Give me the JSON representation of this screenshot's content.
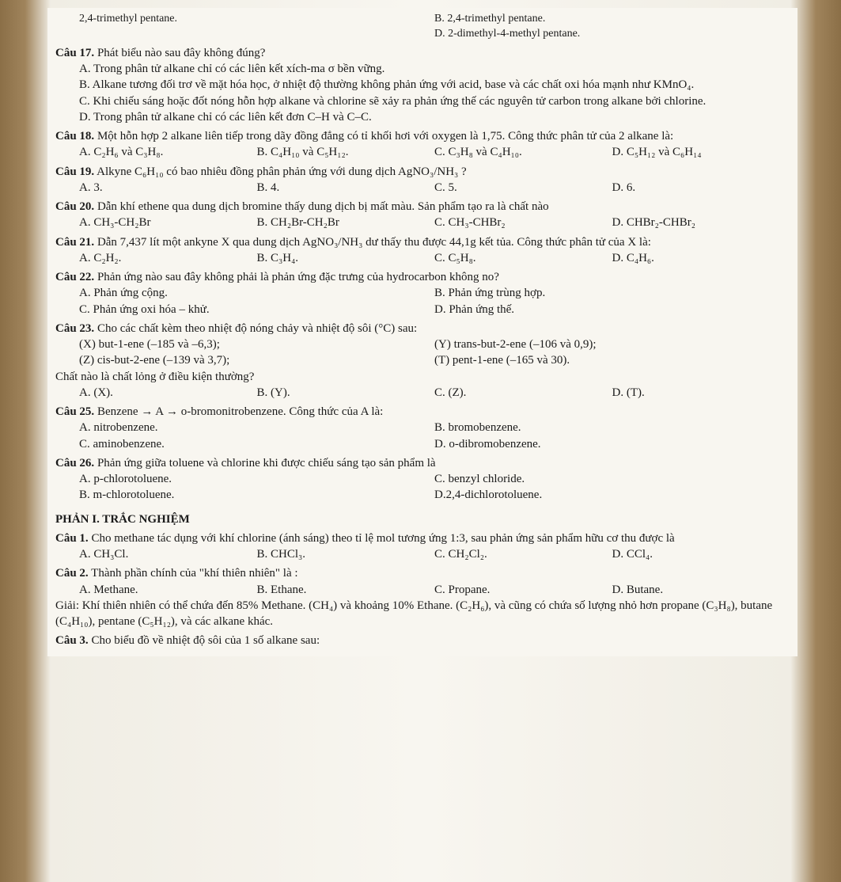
{
  "topFragment": {
    "left": "2,4-trimethyl pentane.",
    "optB": "B. 2,4-trimethyl pentane.",
    "optD": "D. 2-dimethyl-4-methyl pentane."
  },
  "q17": {
    "label": "Câu 17.",
    "text": "Phát biểu nào sau đây không đúng?",
    "optA": "A. Trong phân tử alkane chỉ có các liên kết xích-ma σ bền vững.",
    "optB": "B. Alkane tương đối trơ về mặt hóa học, ở nhiệt độ thường không phản ứng với acid, base và các chất oxi hóa mạnh như KMnO₄.",
    "optC": "C. Khi chiếu sáng hoặc đốt nóng hỗn hợp alkane và chlorine sẽ xảy ra phản ứng thế các nguyên tử carbon trong alkane bởi chlorine.",
    "optD": "D. Trong phân tử alkane chỉ có các liên kết đơn C–H và C–C."
  },
  "q18": {
    "label": "Câu 18.",
    "text": "Một hỗn hợp 2 alkane liên tiếp trong dãy đồng đẳng có tỉ khối hơi với oxygen là 1,75. Công thức phân tử của 2 alkane là:",
    "optA": "A. C₂H₆ và C₃H₈.",
    "optB": "B. C₄H₁₀ và C₅H₁₂.",
    "optC": "C. C₃H₈ và C₄H₁₀.",
    "optD": "D. C₅H₁₂ và C₆H₁₄"
  },
  "q19": {
    "label": "Câu 19.",
    "text": "Alkyne C₆H₁₀ có bao nhiêu đồng phân phản ứng với dung dịch AgNO₃/NH₃ ?",
    "optA": "A. 3.",
    "optB": "B. 4.",
    "optC": "C. 5.",
    "optD": "D. 6."
  },
  "q20": {
    "label": "Câu 20.",
    "text": "Dẫn khí ethene qua dung dịch bromine thấy dung dịch bị mất màu. Sản phẩm tạo ra là chất nào",
    "optA": "A. CH₃-CH₂Br",
    "optB": "B. CH₂Br-CH₂Br",
    "optC": "C. CH₃-CHBr₂",
    "optD": "D. CHBr₂-CHBr₂"
  },
  "q21": {
    "label": "Câu 21.",
    "text": "Dẫn 7,437 lít một ankyne X qua dung dịch AgNO₃/NH₃ dư thấy thu được 44,1g kết tủa. Công thức phân tử của X là:",
    "optA": "A. C₂H₂.",
    "optB": "B. C₃H₄.",
    "optC": "C. C₅H₈.",
    "optD": "D. C₄H₆."
  },
  "q22": {
    "label": "Câu 22.",
    "text": "Phản ứng nào sau đây không phải là phản ứng đặc trưng của hydrocarbon không no?",
    "optA": "A. Phản ứng cộng.",
    "optB": "B. Phản ứng trùng hợp.",
    "optC": "C. Phản ứng oxi hóa – khử.",
    "optD": "D. Phản ứng thế."
  },
  "q23": {
    "label": "Câu 23.",
    "text": "Cho các chất kèm theo nhiệt độ nóng chảy và nhiệt độ sôi (°C) sau:",
    "lineX": "(X) but-1-ene (–185 và –6,3);",
    "lineY": "(Y) trans-but-2-ene (–106 và 0,9);",
    "lineZ": "(Z) cis-but-2-ene (–139 và 3,7);",
    "lineT": "(T) pent-1-ene (–165 và 30).",
    "sub": "Chất nào là chất lỏng ở điều kiện thường?",
    "optA": "A. (X).",
    "optB": "B. (Y).",
    "optC": "C. (Z).",
    "optD": "D. (T)."
  },
  "q25": {
    "label": "Câu 25.",
    "text": "Benzene → A → o-bromonitrobenzene. Công thức của A là:",
    "optA": "A. nitrobenzene.",
    "optB": "B. bromobenzene.",
    "optC": "C. aminobenzene.",
    "optD": "D. o-dibromobenzene."
  },
  "q26": {
    "label": "Câu 26.",
    "text": "Phản ứng giữa toluene và chlorine khi được chiếu sáng tạo sản phẩm là",
    "optA": "A. p-chlorotoluene.",
    "optB": "B. m-chlorotoluene.",
    "optC": "C. benzyl chloride.",
    "optD": "D.2,4-dichlorotoluene."
  },
  "section1": {
    "title": "PHẢN I. TRẮC NGHIỆM"
  },
  "p1q1": {
    "label": "Câu 1.",
    "text": "Cho methane tác dụng với khí chlorine (ánh sáng) theo tỉ lệ mol tương ứng 1:3, sau phản ứng sản phẩm hữu cơ thu được là",
    "optA": "A. CH₃Cl.",
    "optB": "B. CHCl₃.",
    "optC": "C. CH₂Cl₂.",
    "optD": "D. CCl₄."
  },
  "p1q2": {
    "label": "Câu 2.",
    "text": "Thành phần chính của \"khí thiên nhiên\" là :",
    "optA": "A. Methane.",
    "optB": "B. Ethane.",
    "optC": "C. Propane.",
    "optD": "D. Butane.",
    "explain": "Giải: Khí thiên nhiên có thể chứa đến 85% Methane. (CH₄) và khoảng 10% Ethane. (C₂H₆), và cũng có chứa số lượng nhỏ hơn propane (C₃H₈), butane (C₄H₁₀), pentane (C₅H₁₂), và các alkane khác."
  },
  "p1q3": {
    "label": "Câu 3.",
    "text": "Cho biểu đồ về nhiệt độ sôi của 1 số alkane sau:"
  }
}
